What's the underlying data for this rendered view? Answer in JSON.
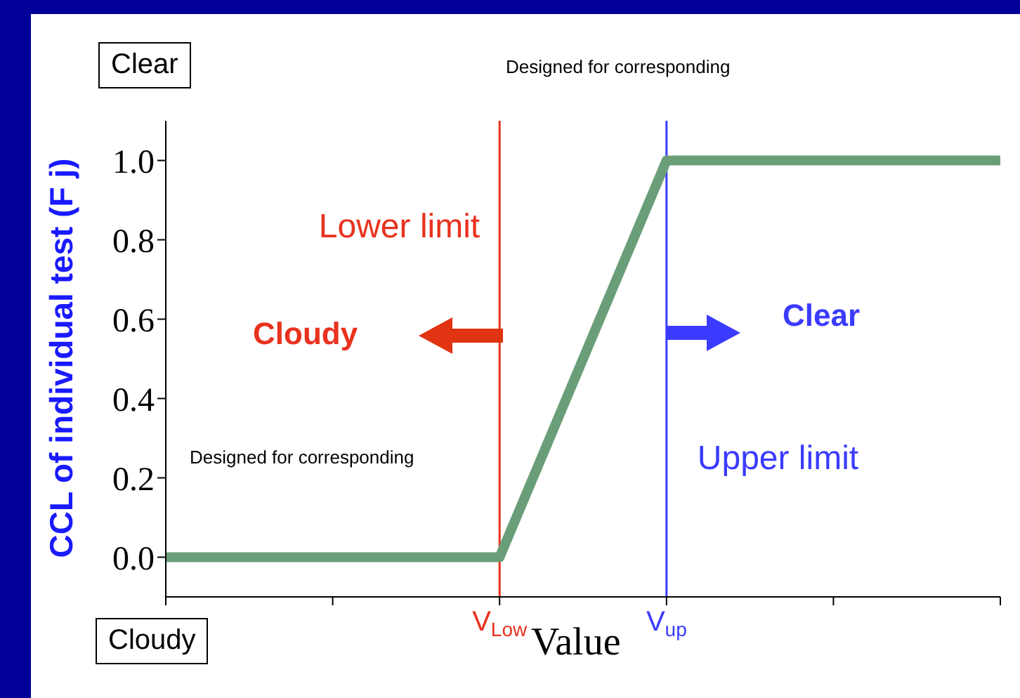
{
  "chart_data": {
    "type": "line",
    "xlabel": "Value",
    "ylabel": "CCL of individual test (F j)",
    "categories": [
      null,
      null,
      "V$_{Low}$",
      "V$_{up}$",
      null,
      null
    ],
    "series": [
      {
        "color": "#6a9e78",
        "values": [
          0,
          0,
          0,
          1,
          1,
          1
        ]
      }
    ],
    "ylim": [
      -0.1,
      1.1
    ],
    "yticks": [
      {
        "value": 0,
        "label": "0.0"
      },
      {
        "value": 0.2,
        "label": "0.2"
      },
      {
        "value": 0.4,
        "label": "0.4"
      },
      {
        "value": 0.6,
        "label": "0.6"
      },
      {
        "value": 0.8,
        "label": "0.8"
      },
      {
        "value": 1,
        "label": "1.0"
      }
    ],
    "ref_lines": [
      {
        "axis": "x",
        "value": "V$_{Low}$",
        "label": "Lower limit",
        "color": "#e8321e"
      },
      {
        "axis": "x",
        "value": "V$_{up}$",
        "label": "Upper limit",
        "color": "#3b3bff"
      }
    ],
    "annotations": [
      "Clear",
      "Designed for corresponding",
      "Cloudy",
      "Clear",
      "Designed for corresponding",
      "Cloudy"
    ],
    "marker": "none",
    "line_style": "solid"
  }
}
